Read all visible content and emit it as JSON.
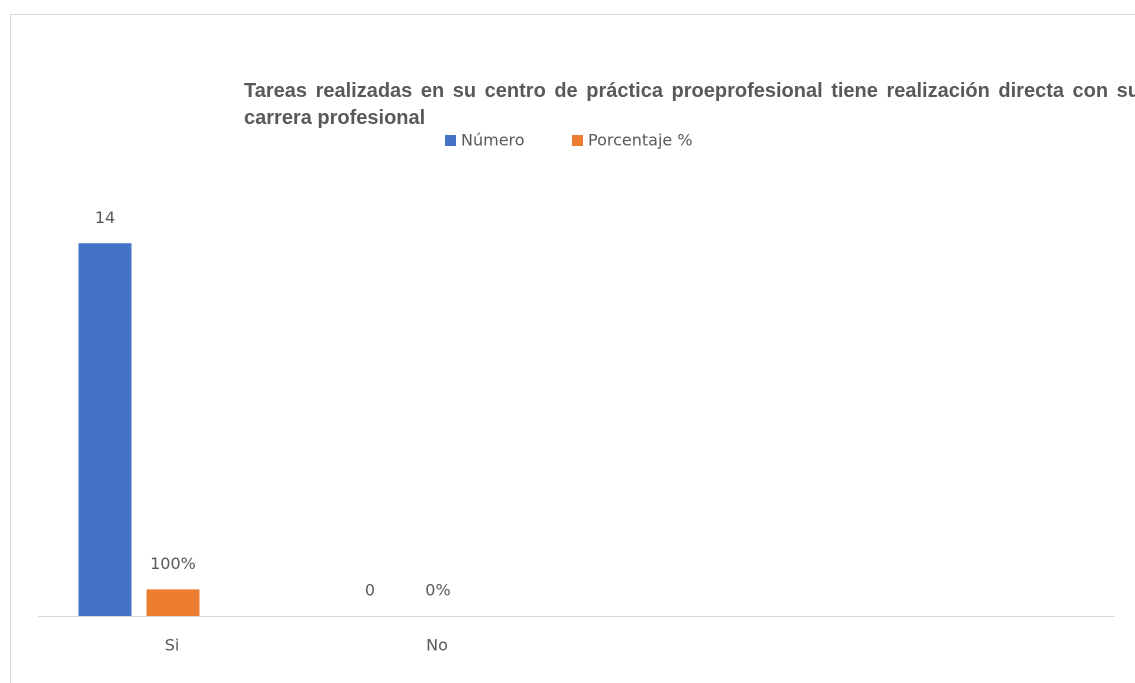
{
  "chart_data": {
    "type": "bar",
    "title": "Tareas realizadas en su centro de práctica proeprofesional tiene realización directa con su carrera profesional",
    "categories": [
      "Si",
      "No"
    ],
    "series": [
      {
        "name": "Número",
        "color": "#4472c4",
        "values": [
          14,
          0
        ],
        "value_labels": [
          "14",
          "0"
        ]
      },
      {
        "name": "Porcentaje %",
        "color": "#ed7d31",
        "values": [
          1,
          0
        ],
        "value_labels": [
          "100%",
          "0%"
        ]
      }
    ],
    "ylim": [
      0,
      16
    ],
    "grid": false,
    "legend": "top"
  }
}
